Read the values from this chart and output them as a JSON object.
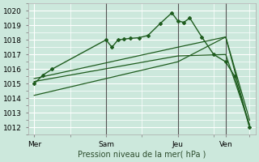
{
  "background_color": "#cce8dc",
  "plot_bg_color": "#cce8dc",
  "grid_color": "#ffffff",
  "line_color": "#1e5c1e",
  "vline_color": "#555555",
  "title": "Pression niveau de la mer( hPa )",
  "ylim": [
    1011.5,
    1020.5
  ],
  "yticks": [
    1012,
    1013,
    1014,
    1015,
    1016,
    1017,
    1018,
    1019,
    1020
  ],
  "xtick_labels": [
    "Mer",
    "Sam",
    "Jeu",
    "Ven"
  ],
  "xtick_positions": [
    0,
    24,
    48,
    64
  ],
  "xlim": [
    -2,
    74
  ],
  "vline_positions": [
    24,
    48,
    64
  ],
  "series_main": {
    "x": [
      0,
      3,
      6,
      24,
      26,
      28,
      30,
      32,
      35,
      38,
      42,
      46,
      48,
      50,
      52,
      56,
      60,
      64,
      67,
      72
    ],
    "y": [
      1015.0,
      1015.6,
      1016.0,
      1018.0,
      1017.5,
      1018.0,
      1018.05,
      1018.1,
      1018.15,
      1018.3,
      1019.1,
      1019.85,
      1019.3,
      1019.2,
      1019.5,
      1018.2,
      1017.0,
      1016.5,
      1015.5,
      1012.0
    ]
  },
  "series_lines": [
    {
      "x": [
        0,
        48,
        64,
        72
      ],
      "y": [
        1014.2,
        1016.5,
        1018.2,
        1012.0
      ]
    },
    {
      "x": [
        0,
        48,
        64,
        72
      ],
      "y": [
        1015.15,
        1016.9,
        1017.0,
        1012.2
      ]
    },
    {
      "x": [
        0,
        48,
        64,
        72
      ],
      "y": [
        1015.35,
        1017.5,
        1018.2,
        1012.5
      ]
    }
  ]
}
